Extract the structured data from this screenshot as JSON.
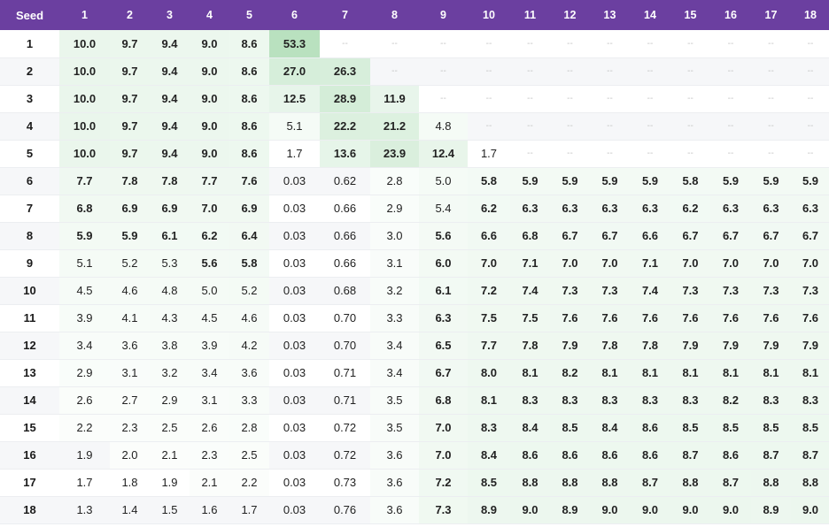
{
  "table": {
    "headers": [
      "Seed",
      "1",
      "2",
      "3",
      "4",
      "5",
      "6",
      "7",
      "8",
      "9",
      "10",
      "11",
      "12",
      "13",
      "14",
      "15",
      "16",
      "17",
      "18"
    ],
    "rows": [
      [
        "1",
        "10.0",
        "9.7",
        "9.4",
        "9.0",
        "8.6",
        "53.3",
        "--",
        "--",
        "--",
        "--",
        "--",
        "--",
        "--",
        "--",
        "--",
        "--",
        "--",
        "--"
      ],
      [
        "2",
        "10.0",
        "9.7",
        "9.4",
        "9.0",
        "8.6",
        "27.0",
        "26.3",
        "--",
        "--",
        "--",
        "--",
        "--",
        "--",
        "--",
        "--",
        "--",
        "--",
        "--"
      ],
      [
        "3",
        "10.0",
        "9.7",
        "9.4",
        "9.0",
        "8.6",
        "12.5",
        "28.9",
        "11.9",
        "--",
        "--",
        "--",
        "--",
        "--",
        "--",
        "--",
        "--",
        "--",
        "--"
      ],
      [
        "4",
        "10.0",
        "9.7",
        "9.4",
        "9.0",
        "8.6",
        "5.1",
        "22.2",
        "21.2",
        "4.8",
        "--",
        "--",
        "--",
        "--",
        "--",
        "--",
        "--",
        "--",
        "--"
      ],
      [
        "5",
        "10.0",
        "9.7",
        "9.4",
        "9.0",
        "8.6",
        "1.7",
        "13.6",
        "23.9",
        "12.4",
        "1.7",
        "--",
        "--",
        "--",
        "--",
        "--",
        "--",
        "--",
        "--"
      ],
      [
        "6",
        "7.7",
        "7.8",
        "7.8",
        "7.7",
        "7.6",
        "0.03",
        "0.62",
        "2.8",
        "5.0",
        "5.8",
        "5.9",
        "5.9",
        "5.9",
        "5.9",
        "5.8",
        "5.9",
        "5.9",
        "5.9"
      ],
      [
        "7",
        "6.8",
        "6.9",
        "6.9",
        "7.0",
        "6.9",
        "0.03",
        "0.66",
        "2.9",
        "5.4",
        "6.2",
        "6.3",
        "6.3",
        "6.3",
        "6.3",
        "6.2",
        "6.3",
        "6.3",
        "6.3"
      ],
      [
        "8",
        "5.9",
        "5.9",
        "6.1",
        "6.2",
        "6.4",
        "0.03",
        "0.66",
        "3.0",
        "5.6",
        "6.6",
        "6.8",
        "6.7",
        "6.7",
        "6.6",
        "6.7",
        "6.7",
        "6.7",
        "6.7"
      ],
      [
        "9",
        "5.1",
        "5.2",
        "5.3",
        "5.6",
        "5.8",
        "0.03",
        "0.66",
        "3.1",
        "6.0",
        "7.0",
        "7.1",
        "7.0",
        "7.0",
        "7.1",
        "7.0",
        "7.0",
        "7.0",
        "7.0"
      ],
      [
        "10",
        "4.5",
        "4.6",
        "4.8",
        "5.0",
        "5.2",
        "0.03",
        "0.68",
        "3.2",
        "6.1",
        "7.2",
        "7.4",
        "7.3",
        "7.3",
        "7.4",
        "7.3",
        "7.3",
        "7.3",
        "7.3"
      ],
      [
        "11",
        "3.9",
        "4.1",
        "4.3",
        "4.5",
        "4.6",
        "0.03",
        "0.70",
        "3.3",
        "6.3",
        "7.5",
        "7.5",
        "7.6",
        "7.6",
        "7.6",
        "7.6",
        "7.6",
        "7.6",
        "7.6"
      ],
      [
        "12",
        "3.4",
        "3.6",
        "3.8",
        "3.9",
        "4.2",
        "0.03",
        "0.70",
        "3.4",
        "6.5",
        "7.7",
        "7.8",
        "7.9",
        "7.8",
        "7.8",
        "7.9",
        "7.9",
        "7.9",
        "7.9"
      ],
      [
        "13",
        "2.9",
        "3.1",
        "3.2",
        "3.4",
        "3.6",
        "0.03",
        "0.71",
        "3.4",
        "6.7",
        "8.0",
        "8.1",
        "8.2",
        "8.1",
        "8.1",
        "8.1",
        "8.1",
        "8.1",
        "8.1"
      ],
      [
        "14",
        "2.6",
        "2.7",
        "2.9",
        "3.1",
        "3.3",
        "0.03",
        "0.71",
        "3.5",
        "6.8",
        "8.1",
        "8.3",
        "8.3",
        "8.3",
        "8.3",
        "8.3",
        "8.2",
        "8.3",
        "8.3"
      ],
      [
        "15",
        "2.2",
        "2.3",
        "2.5",
        "2.6",
        "2.8",
        "0.03",
        "0.72",
        "3.5",
        "7.0",
        "8.3",
        "8.4",
        "8.5",
        "8.4",
        "8.6",
        "8.5",
        "8.5",
        "8.5",
        "8.5"
      ],
      [
        "16",
        "1.9",
        "2.0",
        "2.1",
        "2.3",
        "2.5",
        "0.03",
        "0.72",
        "3.6",
        "7.0",
        "8.4",
        "8.6",
        "8.6",
        "8.6",
        "8.6",
        "8.7",
        "8.6",
        "8.7",
        "8.7"
      ],
      [
        "17",
        "1.7",
        "1.8",
        "1.9",
        "2.1",
        "2.2",
        "0.03",
        "0.73",
        "3.6",
        "7.2",
        "8.5",
        "8.8",
        "8.8",
        "8.8",
        "8.7",
        "8.8",
        "8.7",
        "8.8",
        "8.8"
      ],
      [
        "18",
        "1.3",
        "1.4",
        "1.5",
        "1.6",
        "1.7",
        "0.03",
        "0.76",
        "3.6",
        "7.3",
        "8.9",
        "9.0",
        "8.9",
        "9.0",
        "9.0",
        "9.0",
        "9.0",
        "8.9",
        "9.0"
      ]
    ]
  },
  "colors": {
    "header_bg": "#6b3fa0",
    "header_text": "#ffffff",
    "highlight_green": "#7fc98b",
    "row_alt": "#f6f7f9",
    "missing_text": "#c4c4c4"
  }
}
